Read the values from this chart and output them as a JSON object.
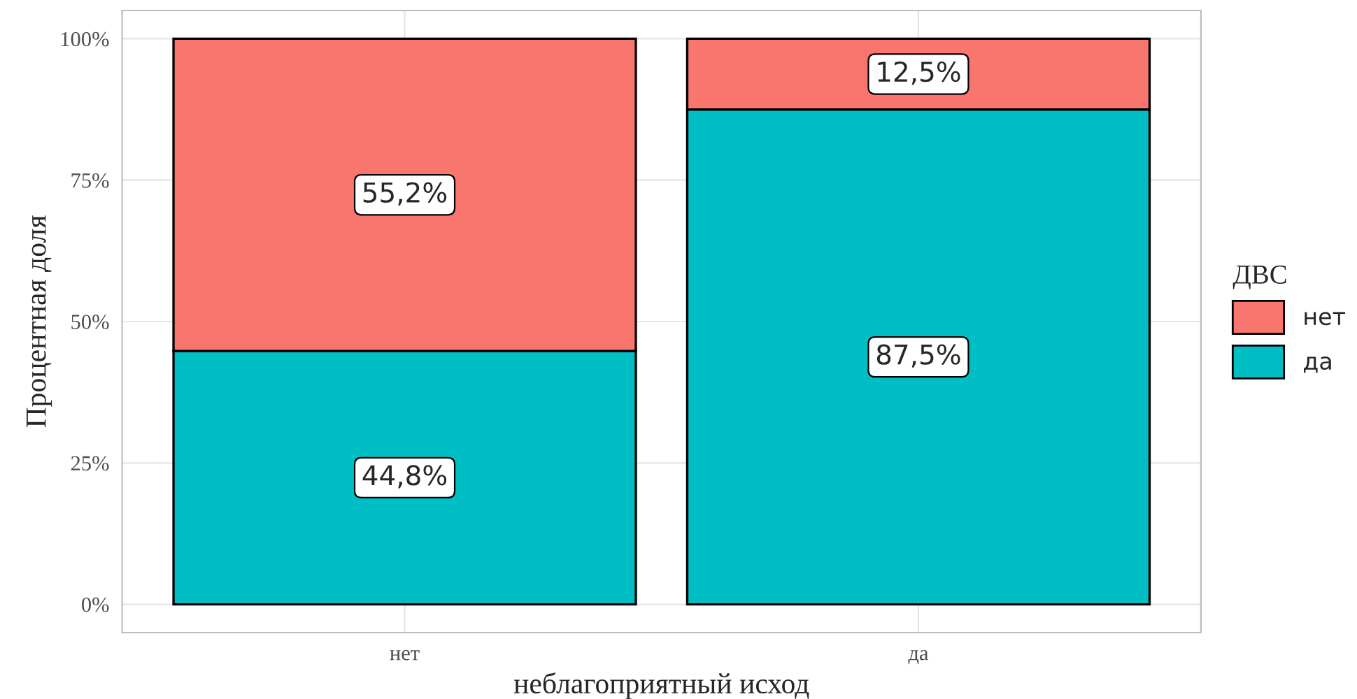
{
  "chart_data": {
    "type": "bar",
    "stacked": true,
    "xlabel": "неблагоприятный исход",
    "ylabel": "Процентная доля",
    "legend_title": "ДВС",
    "legend": "right",
    "categories": [
      "нет",
      "да"
    ],
    "series": [
      {
        "name": "да",
        "color": "#00bfc4",
        "values": [
          44.8,
          87.5
        ],
        "value_labels": [
          "44,8%",
          "87,5%"
        ]
      },
      {
        "name": "нет",
        "color": "#f8766d",
        "values": [
          55.2,
          12.5
        ],
        "value_labels": [
          "55,2%",
          "12,5%"
        ]
      }
    ],
    "ylim": [
      -5,
      105
    ],
    "yticks": [
      {
        "value": 0,
        "label": "0%"
      },
      {
        "value": 25,
        "label": "25%"
      },
      {
        "value": 50,
        "label": "50%"
      },
      {
        "value": 75,
        "label": "75%"
      },
      {
        "value": 100,
        "label": "100%"
      }
    ],
    "grid": true
  }
}
